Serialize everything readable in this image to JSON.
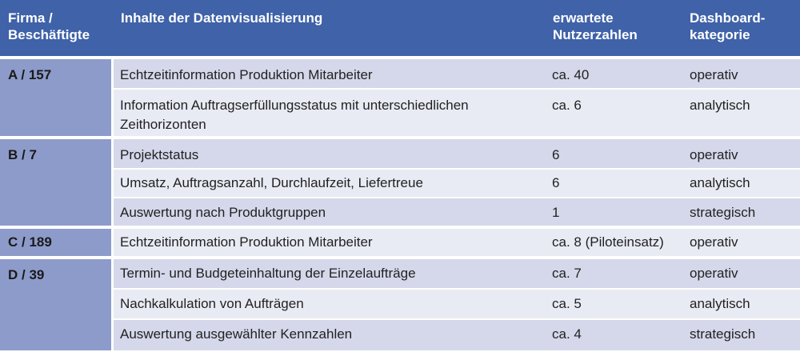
{
  "header": {
    "firma": "Firma /\nBeschäftigte",
    "inhalte": "Inhalte der Datenvisualisierung",
    "nutzer": "erwartete\nNutzerzahlen",
    "kategorie": "Dashboard-\nkategorie"
  },
  "firms": [
    {
      "label": "A / 157"
    },
    {
      "label": "B / 7"
    },
    {
      "label": "C / 189"
    },
    {
      "label": "D / 39"
    }
  ],
  "rows": [
    {
      "content": "Echtzeitinformation Produktion Mitarbeiter",
      "users": "ca. 40",
      "category": "operativ"
    },
    {
      "content": "Information Auftragserfüllungsstatus mit unterschiedlichen Zeithorizonten",
      "users": "ca. 6",
      "category": "analytisch"
    },
    {
      "content": "Projektstatus",
      "users": "6",
      "category": "operativ"
    },
    {
      "content": "Umsatz, Auftragsanzahl, Durchlaufzeit, Liefertreue",
      "users": "6",
      "category": "analytisch"
    },
    {
      "content": "Auswertung nach Produktgruppen",
      "users": "1",
      "category": "strategisch"
    },
    {
      "content": "Echtzeitinformation Produktion Mitarbeiter",
      "users": "ca. 8 (Piloteinsatz)",
      "category": "operativ"
    },
    {
      "content": "Termin- und Budgeteinhaltung der Einzelaufträge",
      "users": "ca. 7",
      "category": "operativ"
    },
    {
      "content": "Nachkalkulation von Aufträgen",
      "users": "ca. 5",
      "category": "analytisch"
    },
    {
      "content": "Auswertung ausgewählter Kennzahlen",
      "users": "ca. 4",
      "category": "strategisch"
    }
  ]
}
